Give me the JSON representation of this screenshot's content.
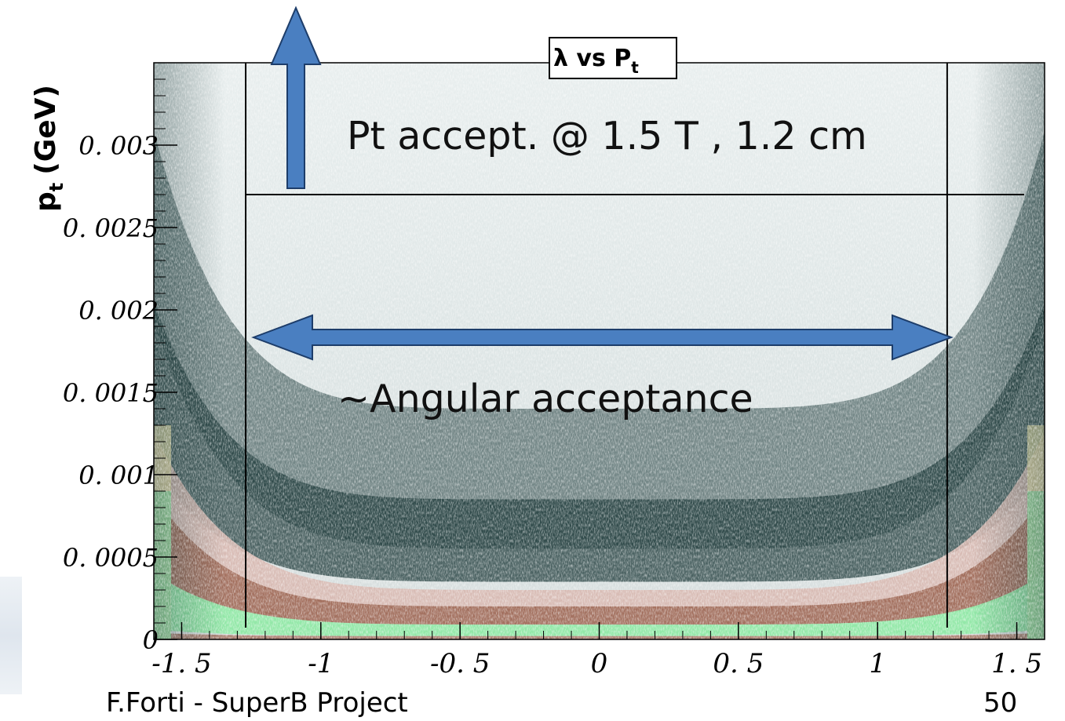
{
  "chart_data": {
    "type": "heatmap",
    "title": "λ vs P",
    "title_subscript": "t",
    "ylabel": "p",
    "ylabel_subscript": "t",
    "ylabel_unit": "(GeV)",
    "xlim": [
      -1.6,
      1.6
    ],
    "ylim": [
      0,
      0.0035
    ],
    "x_ticks": [
      {
        "value": -1.5,
        "label": "-1. 5"
      },
      {
        "value": -1.0,
        "label": "-1"
      },
      {
        "value": -0.5,
        "label": "-0. 5"
      },
      {
        "value": 0.0,
        "label": "0"
      },
      {
        "value": 0.5,
        "label": "0. 5"
      },
      {
        "value": 1.0,
        "label": "1"
      },
      {
        "value": 1.5,
        "label": "1. 5"
      }
    ],
    "y_ticks": [
      {
        "value": 0,
        "label": "0"
      },
      {
        "value": 0.0005,
        "label": "0. 0005"
      },
      {
        "value": 0.001,
        "label": "0. 001"
      },
      {
        "value": 0.0015,
        "label": "0. 0015"
      },
      {
        "value": 0.002,
        "label": "0. 002"
      },
      {
        "value": 0.0025,
        "label": "0. 0025"
      },
      {
        "value": 0.003,
        "label": "0. 003"
      }
    ],
    "cut_lines": {
      "pt_threshold": 0.0027,
      "lambda_low": -1.27,
      "lambda_high": 1.25
    },
    "annotations": {
      "pt_cut_label": "Pt accept.  @ 1.5 T , 1.2 cm",
      "angular_label": "~Angular acceptance"
    },
    "colors": {
      "dense_dark": "#1e3a3a",
      "band_brown": "#a06a58",
      "band_green": "#8fe8a4",
      "band_pink": "#d8b8b0",
      "band_yellow": "#ece2a8",
      "background": "#dde4e4",
      "arrow_fill": "#4a7fc1"
    }
  },
  "footer": {
    "author": "F.Forti - SuperB Project",
    "page": "50"
  }
}
